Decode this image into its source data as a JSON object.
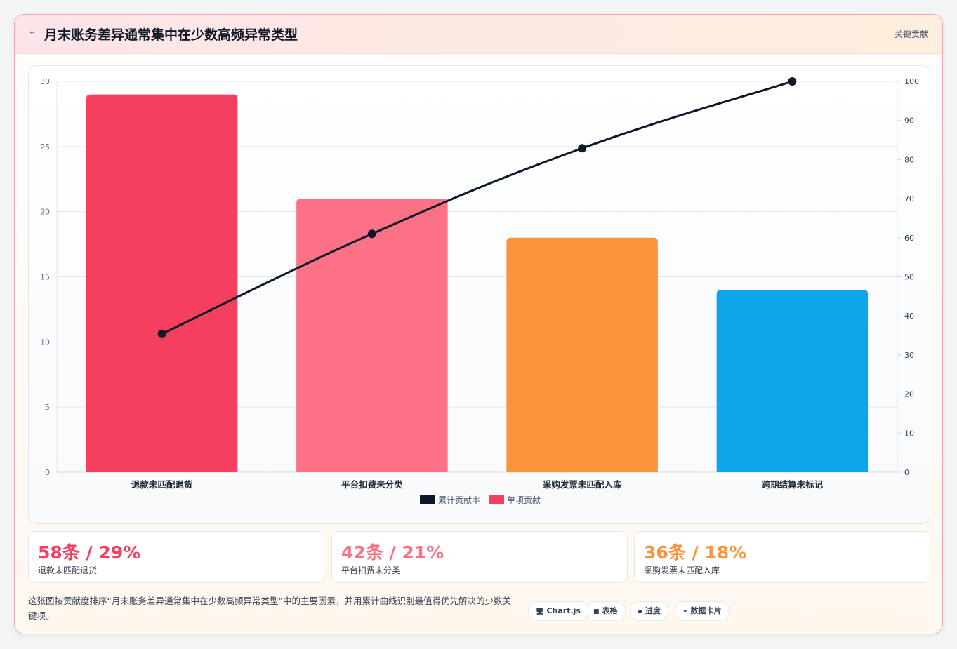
{
  "header": {
    "icon": "lightning-icon",
    "title": "月末账务差异通常集中在少数高频异常类型",
    "tag": "关键贡献"
  },
  "chart_data": {
    "type": "bar",
    "categories": [
      "退款未匹配退货",
      "平台扣费未分类",
      "采购发票未匹配入库",
      "跨期结算未标记"
    ],
    "series": [
      {
        "name": "单项贡献",
        "type": "bar",
        "values": [
          29,
          21,
          18,
          14
        ],
        "colors": [
          "#f43f5e",
          "#fb7185",
          "#fb923c",
          "#0ea5e9"
        ]
      },
      {
        "name": "累计贡献率",
        "type": "line",
        "axis": "right",
        "values": [
          35.4,
          61.0,
          82.9,
          100
        ],
        "color": "#0f172a"
      }
    ],
    "y_left": {
      "min": 0,
      "max": 30,
      "ticks": [
        0,
        5,
        10,
        15,
        20,
        25,
        30
      ]
    },
    "y_right": {
      "min": 0,
      "max": 100,
      "ticks": [
        0,
        10,
        20,
        30,
        40,
        50,
        60,
        70,
        80,
        90,
        100
      ]
    },
    "legend": [
      {
        "label": "累计贡献率",
        "color": "#0f172a"
      },
      {
        "label": "单项贡献",
        "color": "#f43f5e"
      }
    ],
    "legend_position": "bottom",
    "grid": true
  },
  "stats": [
    {
      "value": "58条 / 29%",
      "label": "退款未匹配退货",
      "color": "#f43f5e"
    },
    {
      "value": "42条 / 21%",
      "label": "平台扣费未分类",
      "color": "#fb7185"
    },
    {
      "value": "36条 / 18%",
      "label": "采购发票未匹配入库",
      "color": "#fb923c"
    }
  ],
  "footer": {
    "description": "这张图按贡献度排序“月末账务差异通常集中在少数高频异常类型”中的主要因素，并用累计曲线识别最值得优先解决的少数关键项。"
  },
  "chips": [
    {
      "icon": "🖥",
      "label": "Chart.js"
    },
    {
      "icon": "■",
      "label": "表格"
    },
    {
      "icon": "▰",
      "label": "进度"
    },
    {
      "icon": "✦",
      "label": "数据卡片"
    }
  ]
}
